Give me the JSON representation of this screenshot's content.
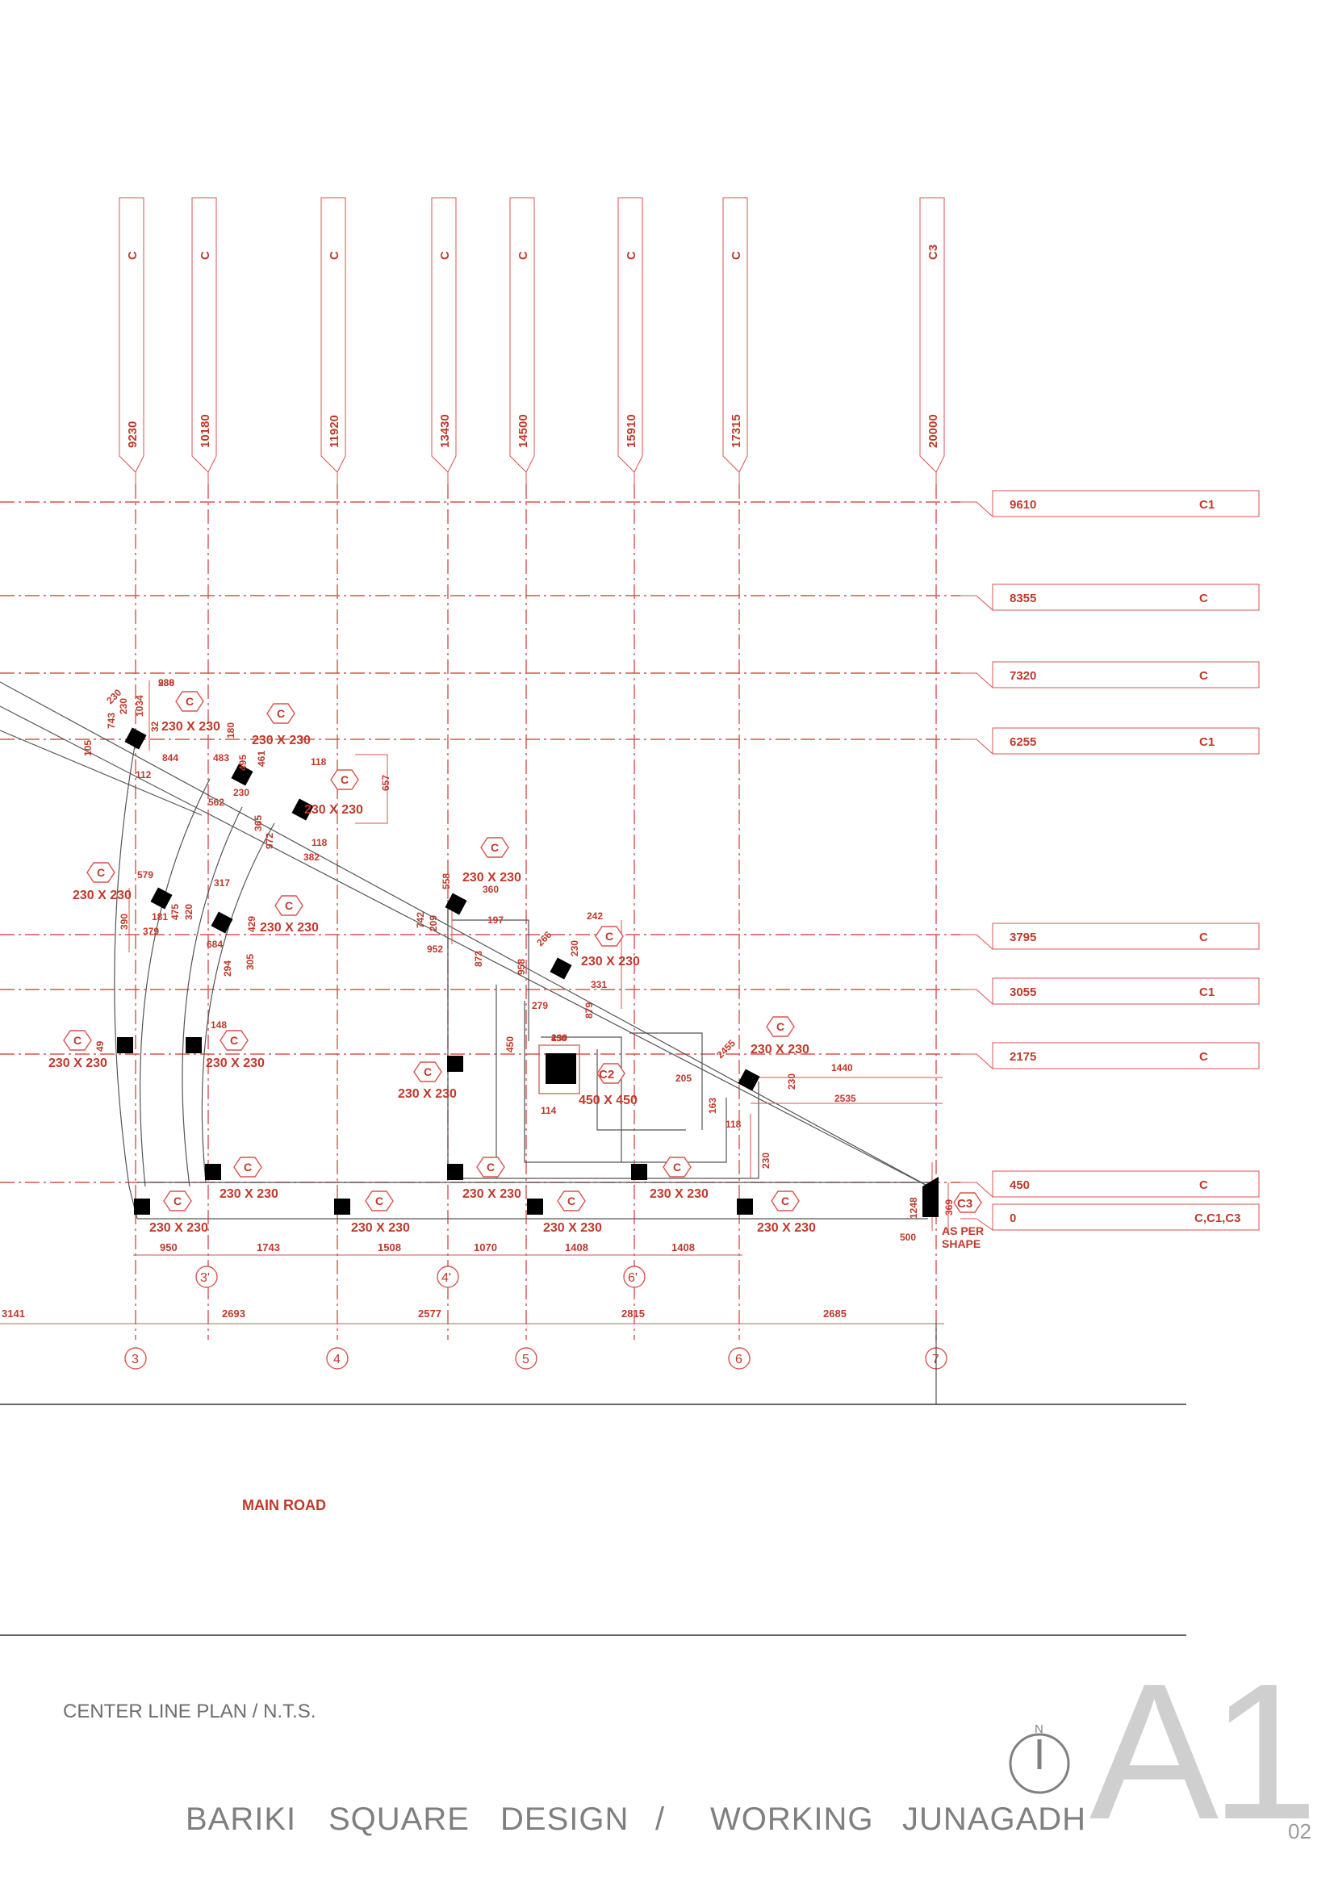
{
  "drawing": {
    "title_line": "CENTER LINE PLAN / N.T.S.",
    "project_words": [
      "BARIKI",
      "SQUARE",
      "DESIGN",
      "/",
      "WORKING",
      "JUNAGADH"
    ],
    "sheet_code": "A1",
    "sheet_number": "02",
    "north_label": "N",
    "road_label": "MAIN ROAD",
    "colors": {
      "lines": "#d9534f",
      "text": "#c0392b",
      "column": "#000000",
      "footer": "#808080"
    }
  },
  "vertical_grid": [
    {
      "dist": "9230",
      "type": "C",
      "axis": "3"
    },
    {
      "dist": "10180",
      "type": "C",
      "axis": "3'"
    },
    {
      "dist": "11920",
      "type": "C",
      "axis": "4"
    },
    {
      "dist": "13430",
      "type": "C",
      "axis": "4'"
    },
    {
      "dist": "14500",
      "type": "C",
      "axis": "5"
    },
    {
      "dist": "15910",
      "type": "C",
      "axis": "6'"
    },
    {
      "dist": "17315",
      "type": "C",
      "axis": "6"
    },
    {
      "dist": "20000",
      "type": "C3",
      "axis": "7"
    }
  ],
  "horizontal_grid": [
    {
      "dist": "9610",
      "type": "C1"
    },
    {
      "dist": "8355",
      "type": "C"
    },
    {
      "dist": "7320",
      "type": "C"
    },
    {
      "dist": "6255",
      "type": "C1"
    },
    {
      "dist": "3795",
      "type": "C"
    },
    {
      "dist": "3055",
      "type": "C1"
    },
    {
      "dist": "2175",
      "type": "C"
    },
    {
      "dist": "450",
      "type": "C"
    },
    {
      "dist": "0",
      "type": "C,C1,C3"
    }
  ],
  "axis_bubbles": [
    "3",
    "4",
    "5",
    "6",
    "7",
    "3'",
    "4'",
    "6'"
  ],
  "bay_dims": [
    "3141",
    "2693",
    "2577",
    "2815",
    "2685"
  ],
  "sub_dims": [
    "950",
    "1743",
    "1508",
    "1070",
    "1408",
    "1408"
  ],
  "column_tag": "C",
  "column_size": "230 X 230",
  "big_column": {
    "tag": "C2",
    "size": "450 X 450",
    "dim": "450"
  },
  "as_per_shape": [
    "AS PER",
    "SHAPE"
  ],
  "end_tag": "C3",
  "small_dims": [
    "988",
    "743",
    "230",
    "1034",
    "32",
    "844",
    "105",
    "112",
    "483",
    "180",
    "461",
    "118",
    "495",
    "365",
    "562",
    "230",
    "657",
    "972",
    "118",
    "382",
    "579",
    "317",
    "390",
    "181",
    "475",
    "320",
    "379",
    "684",
    "429",
    "294",
    "305",
    "742",
    "209",
    "558",
    "360",
    "952",
    "197",
    "873",
    "242",
    "958",
    "266",
    "230",
    "279",
    "331",
    "879",
    "148",
    "49",
    "230",
    "450",
    "114",
    "205",
    "1440",
    "2535",
    "2455",
    "230",
    "163",
    "118",
    "230",
    "1248",
    "369",
    "500",
    "230",
    "230"
  ]
}
